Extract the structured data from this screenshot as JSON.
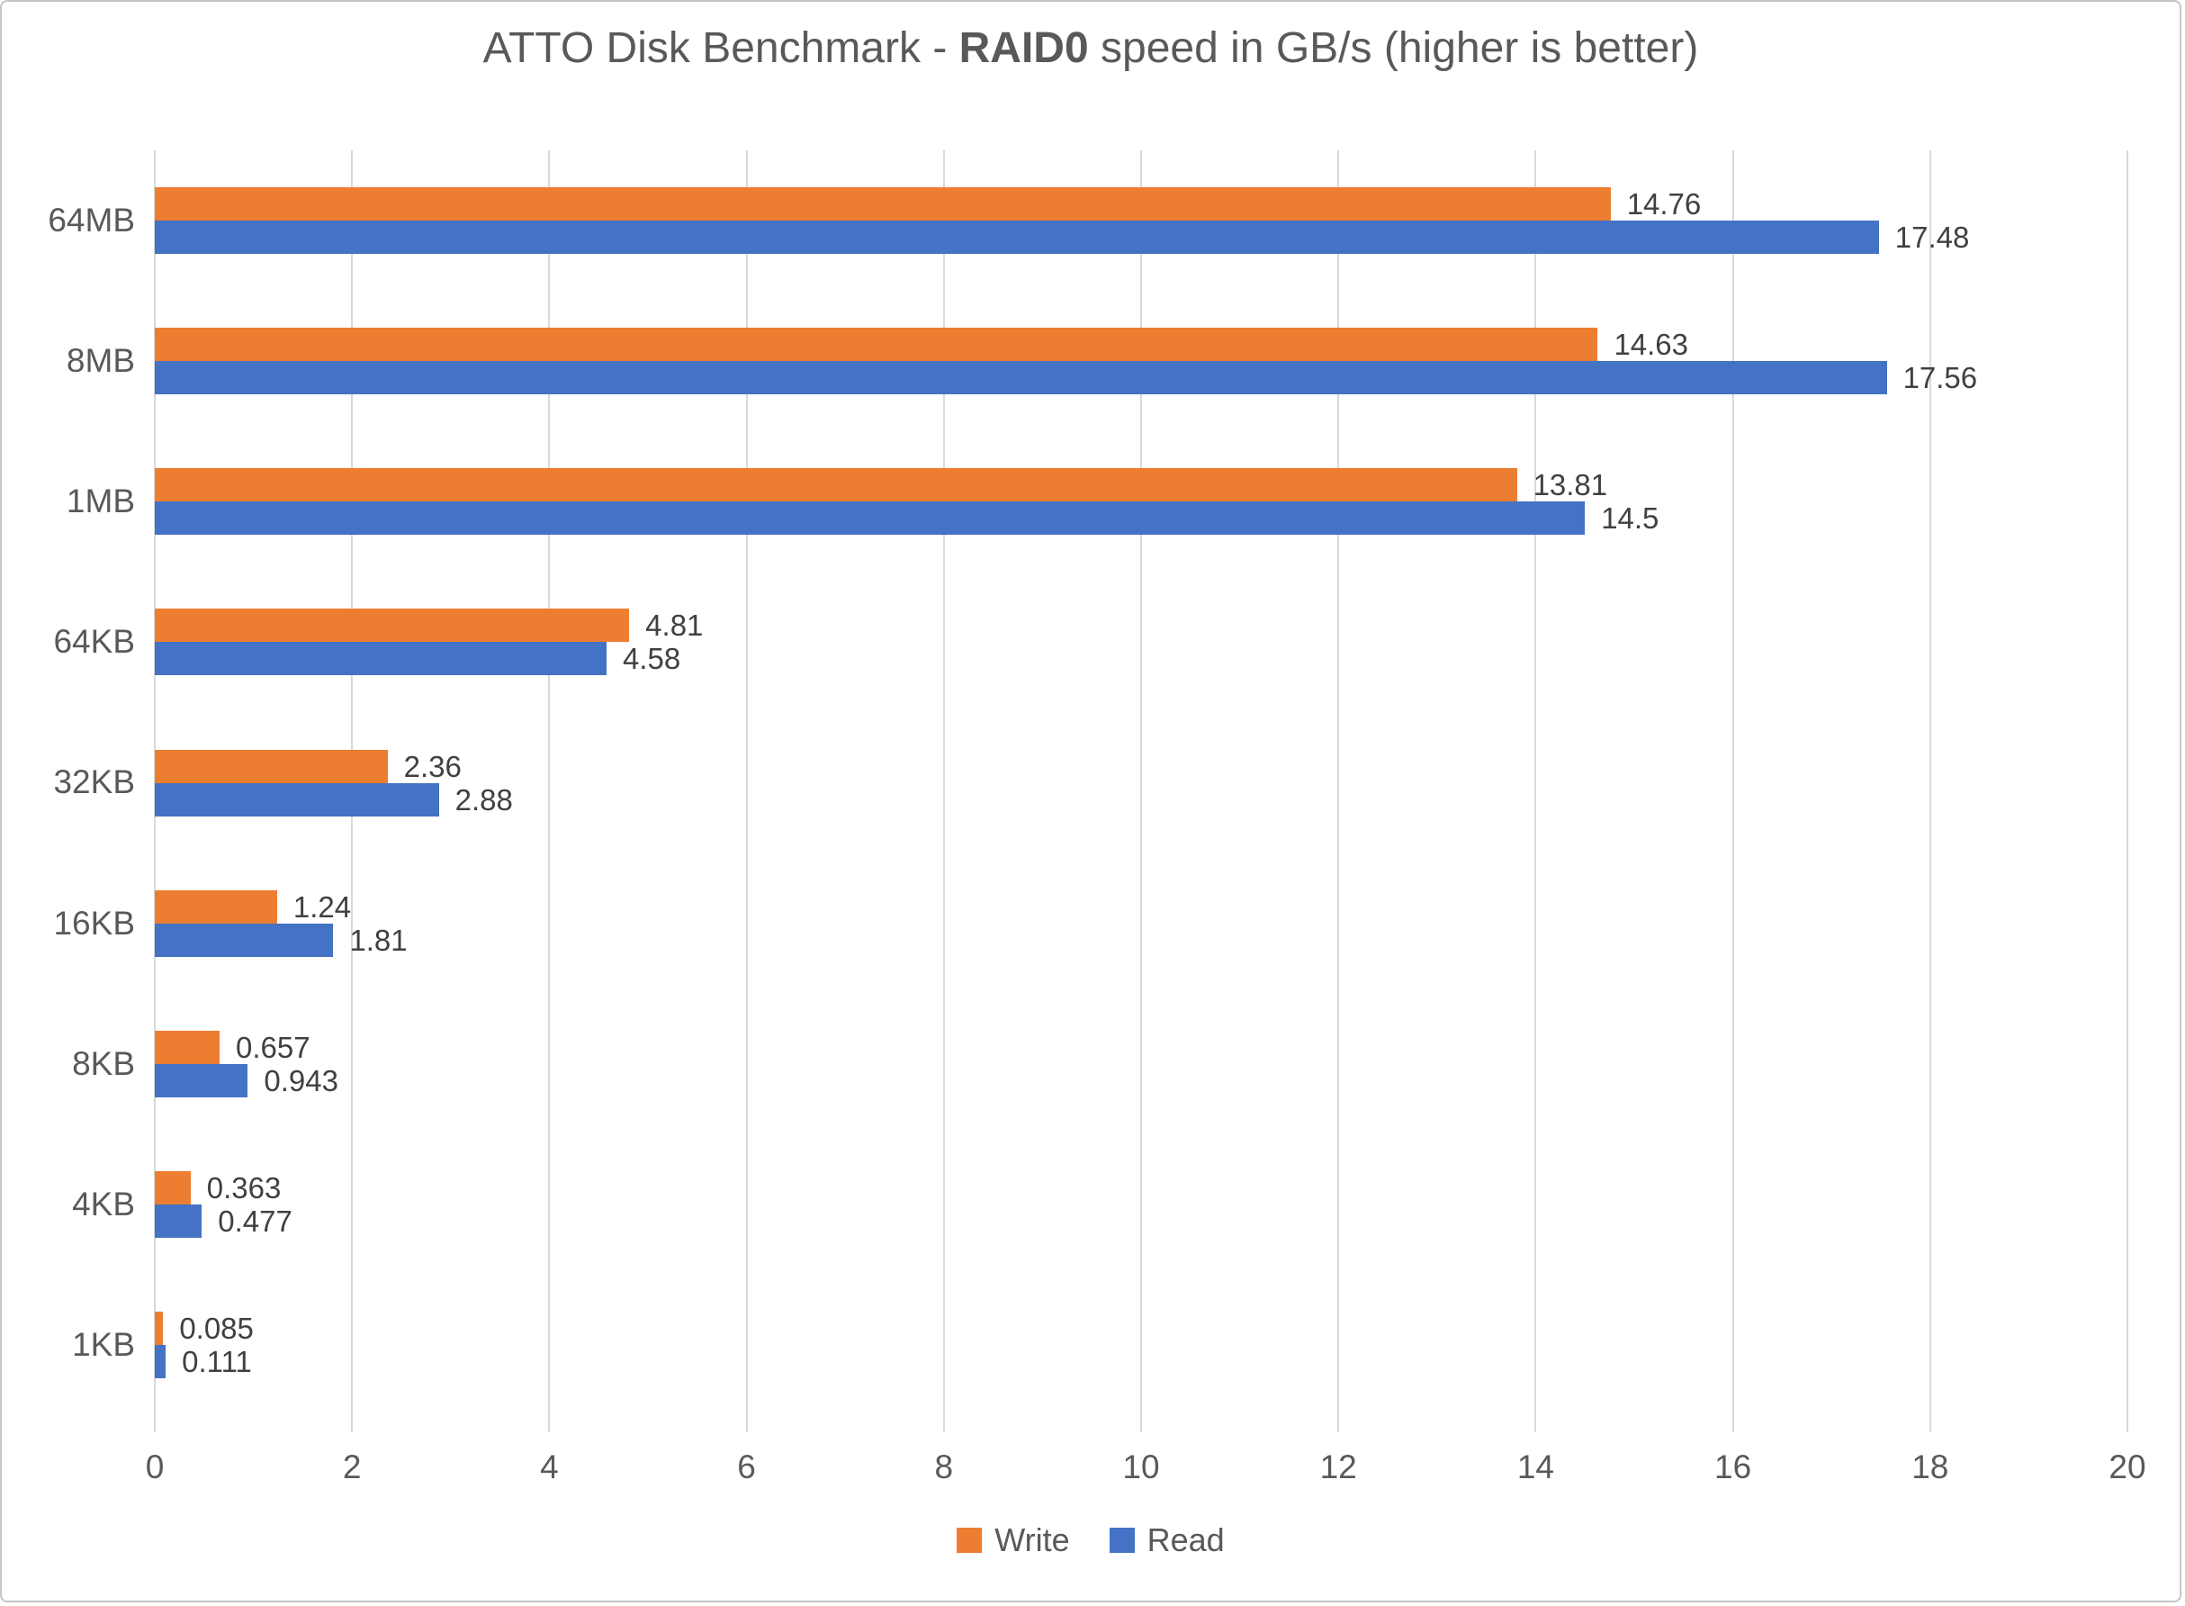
{
  "chart_data": {
    "type": "bar",
    "orientation": "horizontal",
    "title_parts": {
      "prefix": "ATTO Disk Benchmark - ",
      "bold": "RAID0",
      "suffix": " speed in GB/s (higher is better)"
    },
    "categories": [
      "64MB",
      "8MB",
      "1MB",
      "64KB",
      "32KB",
      "16KB",
      "8KB",
      "4KB",
      "1KB"
    ],
    "series": [
      {
        "name": "Write",
        "color": "#ED7D31",
        "values": [
          14.76,
          14.63,
          13.81,
          4.81,
          2.36,
          1.24,
          0.657,
          0.363,
          0.085
        ],
        "labels": [
          "14.76",
          "14.63",
          "13.81",
          "4.81",
          "2.36",
          "1.24",
          "0.657",
          "0.363",
          "0.085"
        ]
      },
      {
        "name": "Read",
        "color": "#4472C4",
        "values": [
          17.48,
          17.56,
          14.5,
          4.58,
          2.88,
          1.81,
          0.943,
          0.477,
          0.111
        ],
        "labels": [
          "17.48",
          "17.56",
          "14.5",
          "4.58",
          "2.88",
          "1.81",
          "0.943",
          "0.477",
          "0.111"
        ]
      }
    ],
    "xlim": [
      0,
      20
    ],
    "xticks": [
      0,
      2,
      4,
      6,
      8,
      10,
      12,
      14,
      16,
      18,
      20
    ],
    "grid": "vertical",
    "legend_position": "bottom",
    "colors": {
      "grid": "#D9D9D9",
      "axis_text": "#595959",
      "title_text": "#595959",
      "data_label_text": "#404040"
    }
  }
}
